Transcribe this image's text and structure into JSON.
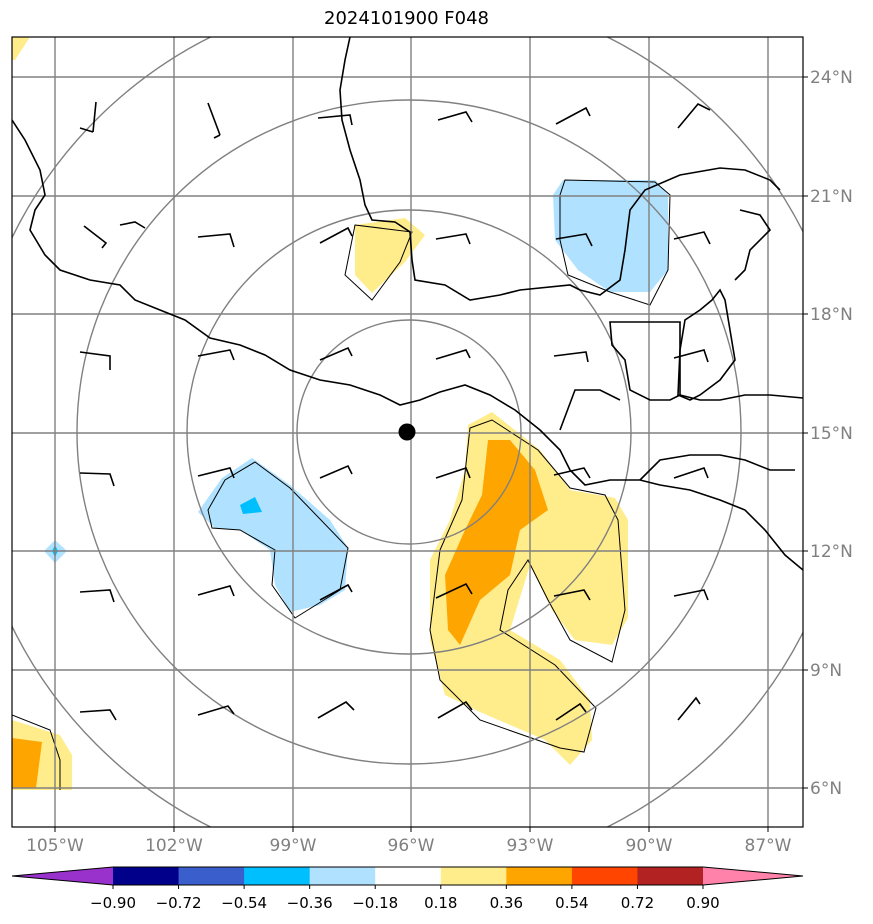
{
  "title": "2024101900 F048",
  "map": {
    "lat_ticks": [
      "24°N",
      "21°N",
      "18°N",
      "15°N",
      "12°N",
      "9°N",
      "6°N"
    ],
    "lon_ticks": [
      "105°W",
      "102°W",
      "99°W",
      "96°W",
      "93°W",
      "90°W",
      "87°W"
    ],
    "center_marker": "storm-center-dot",
    "colors": {
      "coast": "#000000",
      "grid": "#808080",
      "range_rings": "#808080"
    }
  },
  "colorbar": {
    "ticks": [
      "−0.90",
      "−0.72",
      "−0.54",
      "−0.36",
      "−0.18",
      "0.18",
      "0.36",
      "0.54",
      "0.72",
      "0.90"
    ],
    "colors": [
      "#9932cc",
      "#00008b",
      "#3a5fcd",
      "#00bfff",
      "#b0e2ff",
      "#ffffff",
      "#ffec8b",
      "#ffa500",
      "#ff4500",
      "#b22222",
      "#ff82ab"
    ]
  }
}
